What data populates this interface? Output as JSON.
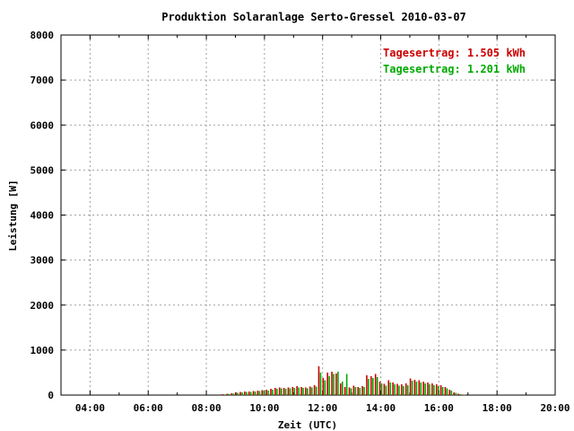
{
  "chart_data": {
    "type": "bar",
    "title": "Produktion Solaranlage Serto-Gressel 2010-03-07",
    "xlabel": "Zeit (UTC)",
    "ylabel": "Leistung [W]",
    "xlim": [
      3,
      20
    ],
    "ylim": [
      0,
      8000
    ],
    "grid": true,
    "x_ticks": [
      "04:00",
      "06:00",
      "08:00",
      "10:00",
      "12:00",
      "14:00",
      "16:00",
      "18:00",
      "20:00"
    ],
    "y_ticks": [
      "0",
      "1000",
      "2000",
      "3000",
      "4000",
      "5000",
      "6000",
      "7000",
      "8000"
    ],
    "annotations": [
      {
        "text": "Tagesertrag: 1.505 kWh",
        "color": "#cc0000"
      },
      {
        "text": "Tagesertrag: 1.201 kWh",
        "color": "#00aa00"
      }
    ],
    "x_hours": [
      8.6,
      8.75,
      8.9,
      9.05,
      9.2,
      9.35,
      9.5,
      9.65,
      9.8,
      9.95,
      10.1,
      10.25,
      10.4,
      10.55,
      10.7,
      10.85,
      11.0,
      11.15,
      11.3,
      11.45,
      11.6,
      11.75,
      11.9,
      12.05,
      12.2,
      12.35,
      12.5,
      12.65,
      12.8,
      12.95,
      13.1,
      13.25,
      13.4,
      13.55,
      13.7,
      13.85,
      14.0,
      14.15,
      14.3,
      14.45,
      14.6,
      14.75,
      14.9,
      15.05,
      15.2,
      15.35,
      15.5,
      15.65,
      15.8,
      15.95,
      16.1,
      16.25,
      16.4,
      16.55,
      16.7,
      16.85
    ],
    "series": [
      {
        "color": "#cc0000",
        "values": [
          20,
          30,
          40,
          60,
          70,
          80,
          80,
          90,
          100,
          110,
          120,
          140,
          160,
          170,
          160,
          170,
          180,
          200,
          180,
          170,
          190,
          220,
          640,
          380,
          500,
          520,
          480,
          260,
          180,
          170,
          210,
          180,
          200,
          440,
          420,
          470,
          300,
          250,
          330,
          280,
          250,
          240,
          260,
          370,
          340,
          330,
          300,
          280,
          260,
          240,
          220,
          180,
          120,
          60,
          30,
          10
        ]
      },
      {
        "color": "#00aa00",
        "values": [
          15,
          25,
          35,
          50,
          60,
          70,
          70,
          80,
          90,
          100,
          100,
          120,
          140,
          150,
          140,
          150,
          160,
          170,
          160,
          150,
          170,
          190,
          500,
          330,
          420,
          470,
          520,
          300,
          470,
          150,
          180,
          160,
          180,
          360,
          380,
          400,
          260,
          210,
          280,
          240,
          210,
          200,
          220,
          320,
          300,
          280,
          260,
          240,
          220,
          200,
          180,
          150,
          100,
          50,
          20,
          8
        ]
      }
    ]
  }
}
